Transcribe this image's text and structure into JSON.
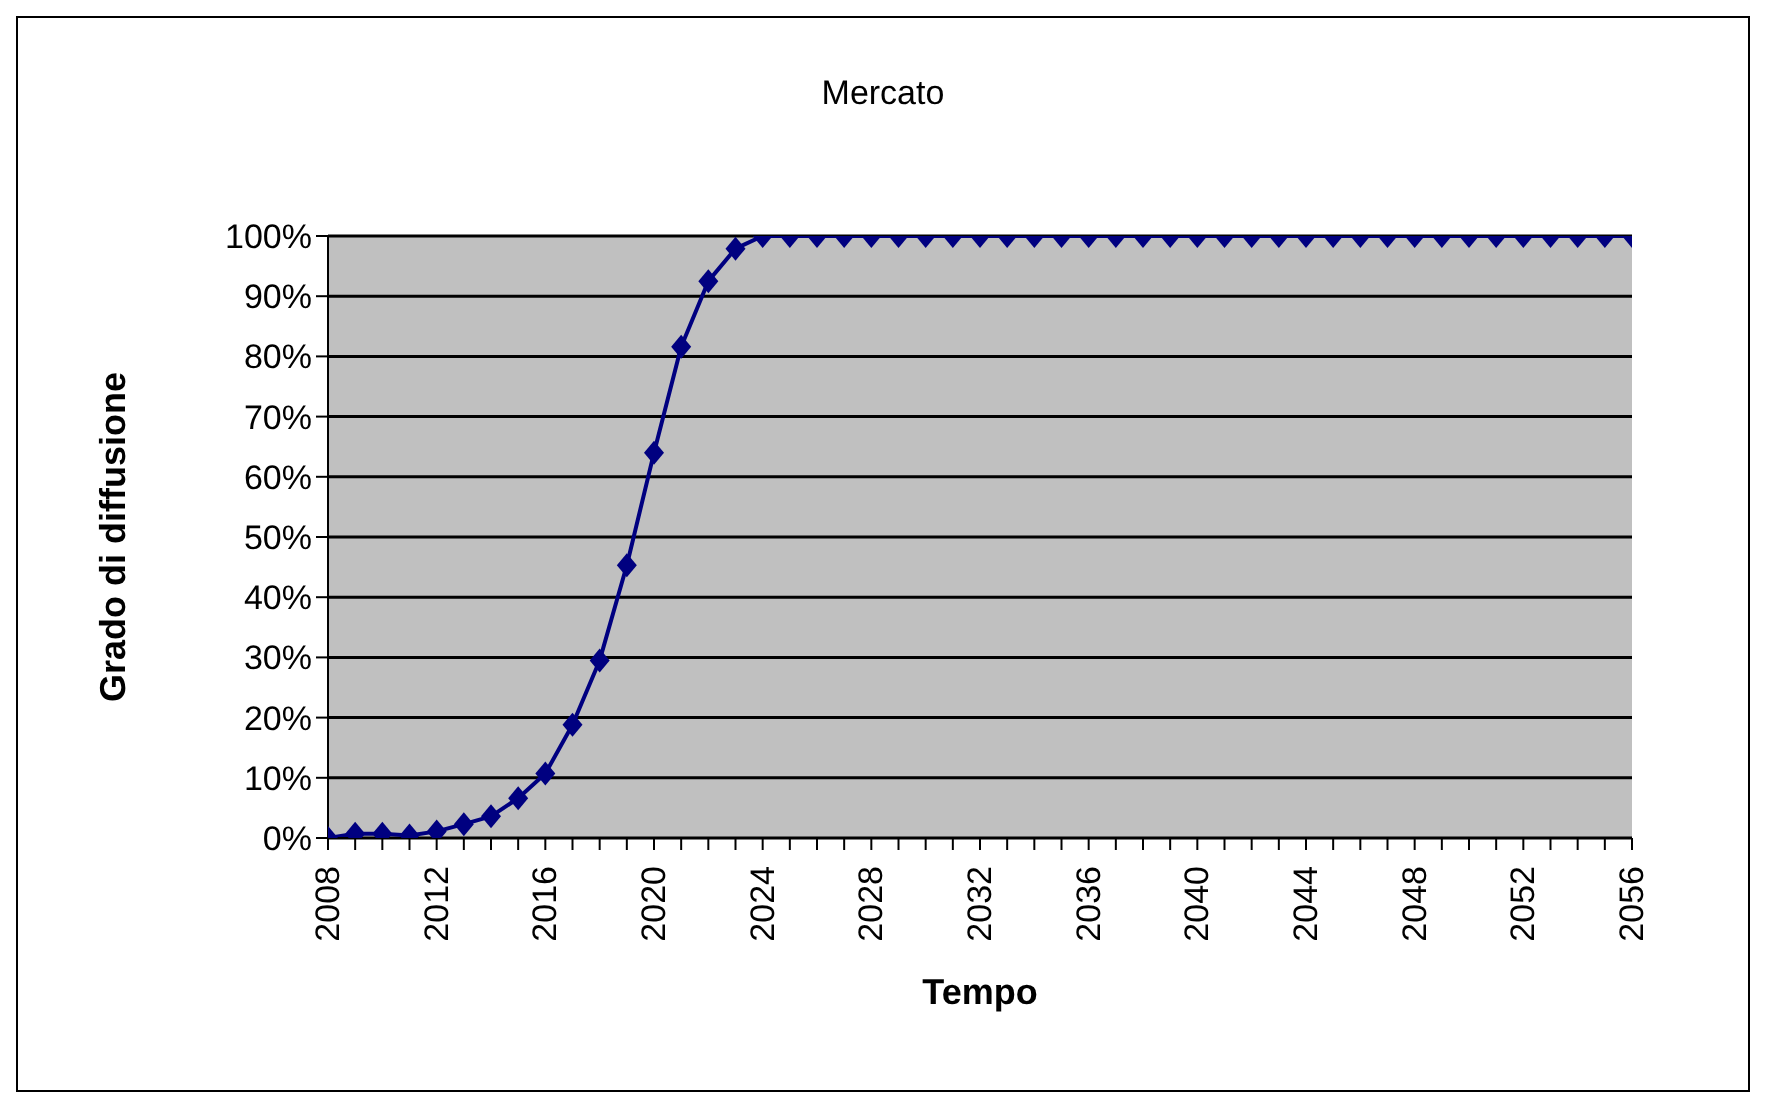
{
  "chart_data": {
    "type": "line",
    "title": "Mercato",
    "xlabel": "Tempo",
    "ylabel": "Grado di diffusione",
    "categories": [
      "2008",
      null,
      null,
      null,
      "2012",
      null,
      null,
      null,
      "2016",
      null,
      null,
      null,
      "2020",
      null,
      null,
      null,
      "2024",
      null,
      null,
      null,
      "2028",
      null,
      null,
      null,
      "2032",
      null,
      null,
      null,
      "2036",
      null,
      null,
      null,
      "2040",
      null,
      null,
      null,
      "2044",
      null,
      null,
      null,
      "2048",
      null,
      null,
      null,
      "2052",
      null,
      null,
      null,
      "2056"
    ],
    "series": [
      {
        "color": "#000080",
        "values": [
          0,
          0.7,
          0.7,
          0.4,
          1.1,
          2.3,
          3.6,
          6.6,
          10.7,
          18.8,
          29.5,
          45.3,
          64,
          81.6,
          92.5,
          97.9,
          100,
          100,
          100,
          100,
          100,
          100,
          100,
          100,
          100,
          100,
          100,
          100,
          100,
          100,
          100,
          100,
          100,
          100,
          100,
          100,
          100,
          100,
          100,
          100,
          100,
          100,
          100,
          100,
          100,
          100,
          100,
          100,
          100
        ]
      }
    ],
    "ylim": [
      0,
      100
    ],
    "yticks": [
      {
        "value": 0,
        "label": "0%"
      },
      {
        "value": 10,
        "label": "10%"
      },
      {
        "value": 20,
        "label": "20%"
      },
      {
        "value": 30,
        "label": "30%"
      },
      {
        "value": 40,
        "label": "40%"
      },
      {
        "value": 50,
        "label": "50%"
      },
      {
        "value": 60,
        "label": "60%"
      },
      {
        "value": 70,
        "label": "70%"
      },
      {
        "value": 80,
        "label": "80%"
      },
      {
        "value": 90,
        "label": "90%"
      },
      {
        "value": 100,
        "label": "100%"
      }
    ],
    "grid": "y",
    "legend": false,
    "marker": "diamond",
    "line_style": "solid"
  }
}
